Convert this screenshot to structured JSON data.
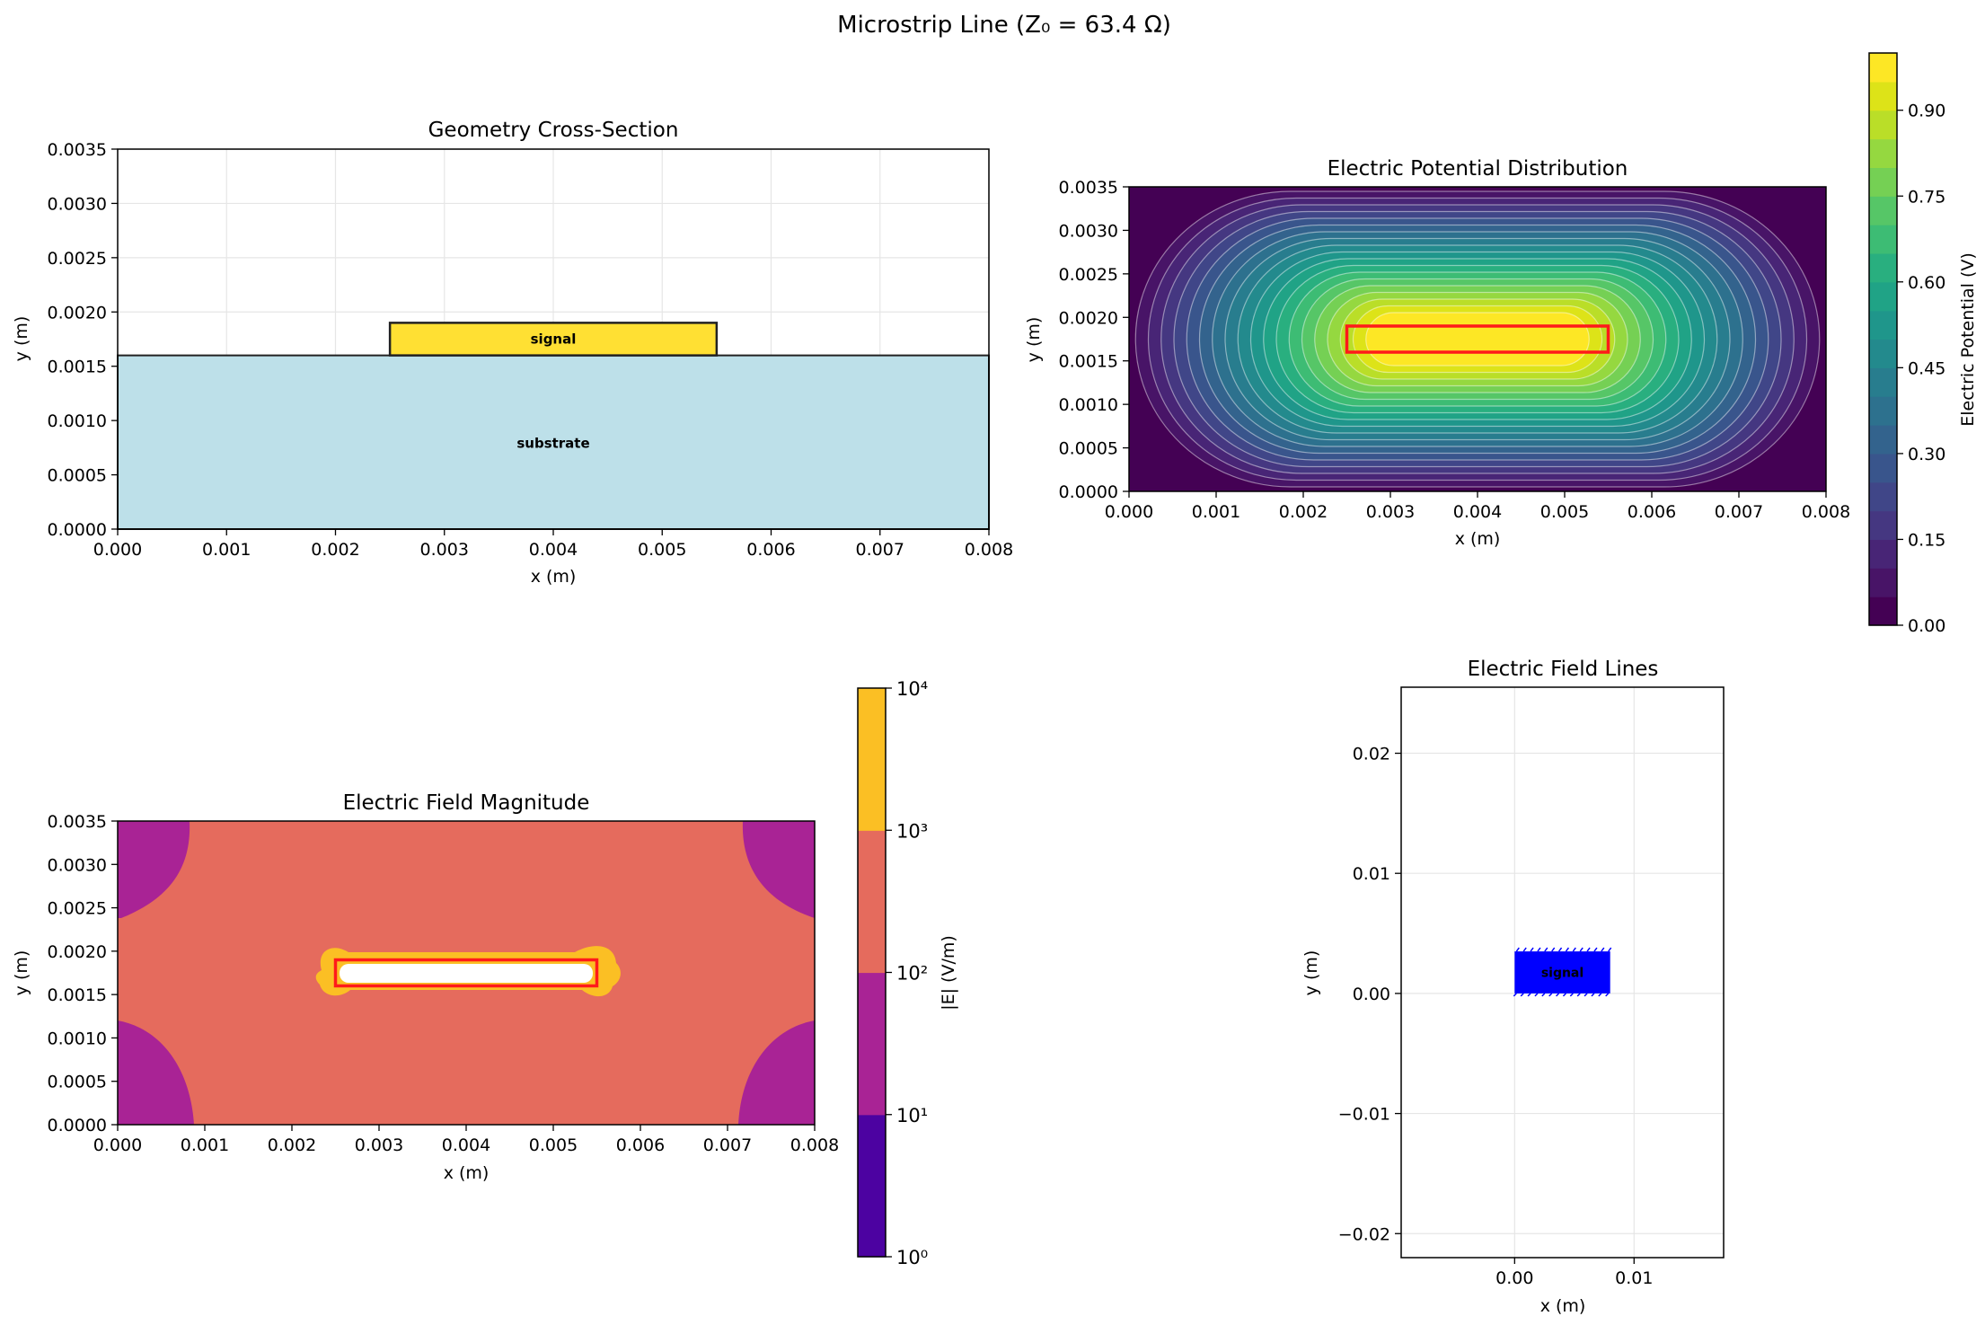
{
  "figure": {
    "suptitle": "Microstrip Line (Z₀ = 63.4 Ω)"
  },
  "chart_data": [
    {
      "type": "area",
      "title": "Geometry Cross-Section",
      "xlabel": "x (m)",
      "ylabel": "y (m)",
      "xlim": [
        0,
        0.008
      ],
      "ylim": [
        0,
        0.0035
      ],
      "xticks": [
        "0.000",
        "0.001",
        "0.002",
        "0.003",
        "0.004",
        "0.005",
        "0.006",
        "0.007",
        "0.008"
      ],
      "yticks": [
        "0.0000",
        "0.0005",
        "0.0010",
        "0.0015",
        "0.0020",
        "0.0025",
        "0.0030",
        "0.0035"
      ],
      "grid": true,
      "regions": [
        {
          "label": "substrate",
          "x0": 0,
          "x1": 0.008,
          "y0": 0,
          "y1": 0.0016,
          "color": "#add8e6"
        },
        {
          "label": "signal",
          "x0": 0.0025,
          "x1": 0.0055,
          "y0": 0.0016,
          "y1": 0.0019,
          "color": "#ffd700"
        }
      ]
    },
    {
      "type": "heatmap",
      "title": "Electric Potential Distribution",
      "xlabel": "x (m)",
      "ylabel": "y (m)",
      "xlim": [
        0,
        0.008
      ],
      "ylim": [
        0,
        0.0035
      ],
      "xticks": [
        "0.000",
        "0.001",
        "0.002",
        "0.003",
        "0.004",
        "0.005",
        "0.006",
        "0.007",
        "0.008"
      ],
      "yticks": [
        "0.0000",
        "0.0005",
        "0.0010",
        "0.0015",
        "0.0020",
        "0.0025",
        "0.0030",
        "0.0035"
      ],
      "colormap": "viridis",
      "levels": 20,
      "conductor": {
        "x0": 0.0025,
        "x1": 0.0055,
        "y0": 0.0016,
        "y1": 0.0019,
        "outline": "#ff0000"
      },
      "colorbar": {
        "label": "Electric Potential (V)",
        "min": 0,
        "max": 1,
        "ticks": [
          "0.00",
          "0.15",
          "0.30",
          "0.45",
          "0.60",
          "0.75",
          "0.90"
        ]
      }
    },
    {
      "type": "heatmap",
      "title": "Electric Field Magnitude",
      "xlabel": "x (m)",
      "ylabel": "y (m)",
      "xlim": [
        0,
        0.008
      ],
      "ylim": [
        0,
        0.0035
      ],
      "xticks": [
        "0.000",
        "0.001",
        "0.002",
        "0.003",
        "0.004",
        "0.005",
        "0.006",
        "0.007",
        "0.008"
      ],
      "yticks": [
        "0.0000",
        "0.0005",
        "0.0010",
        "0.0015",
        "0.0020",
        "0.0025",
        "0.0030",
        "0.0035"
      ],
      "scale": "log",
      "colormap": "plasma",
      "conductor": {
        "x0": 0.0025,
        "x1": 0.0055,
        "y0": 0.0016,
        "y1": 0.0019,
        "outline": "#ff0000"
      },
      "colorbar": {
        "label": "|E| (V/m)",
        "bands": [
          {
            "from": "10⁰",
            "to": "10¹",
            "color": "#4c02a1"
          },
          {
            "from": "10¹",
            "to": "10²",
            "color": "#a92395"
          },
          {
            "from": "10²",
            "to": "10³",
            "color": "#e56b5d"
          },
          {
            "from": "10³",
            "to": "10⁴",
            "color": "#fbbf24"
          }
        ],
        "ticks": [
          "10⁰",
          "10¹",
          "10²",
          "10³",
          "10⁴"
        ]
      }
    },
    {
      "type": "scatter",
      "title": "Electric Field Lines",
      "xlabel": "x (m)",
      "ylabel": "y (m)",
      "xlim": [
        -0.0095,
        0.0175
      ],
      "ylim": [
        -0.022,
        0.0255
      ],
      "xticks": [
        "0.00",
        "0.01"
      ],
      "yticks": [
        "−0.02",
        "−0.01",
        "0.00",
        "0.01",
        "0.02"
      ],
      "grid": true,
      "signal_box": {
        "label": "signal",
        "x0": 0,
        "x1": 0.008,
        "y0": 0,
        "y1": 0.0035,
        "color": "#0000ff"
      }
    }
  ]
}
